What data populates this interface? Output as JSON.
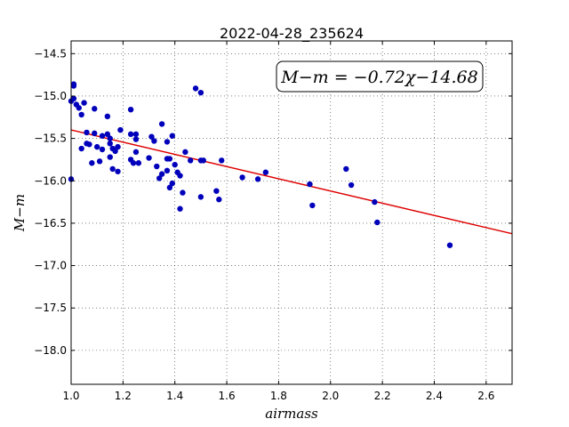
{
  "chart_data": {
    "type": "scatter",
    "title": "2022-04-28_235624",
    "xlabel": "airmass",
    "ylabel": "M−m",
    "xlim": [
      1.0,
      2.7
    ],
    "ylim": [
      -18.4,
      -14.35
    ],
    "y_inverted": true,
    "grid": true,
    "x_ticks": [
      1.0,
      1.2,
      1.4,
      1.6,
      1.8,
      2.0,
      2.2,
      2.4,
      2.6
    ],
    "x_tick_labels": [
      "1.0",
      "1.2",
      "1.4",
      "1.6",
      "1.8",
      "2.0",
      "2.2",
      "2.4",
      "2.6"
    ],
    "y_ticks": [
      -14.5,
      -15.0,
      -15.5,
      -16.0,
      -16.5,
      -17.0,
      -17.5,
      -18.0
    ],
    "y_tick_labels": [
      "−14.5",
      "−15.0",
      "−15.5",
      "−16.0",
      "−16.5",
      "−17.0",
      "−17.5",
      "−18.0"
    ],
    "annotation": "M−m = −0.72χ−14.68",
    "annotation_placement": "top-right",
    "fit_line": {
      "slope": -0.72,
      "intercept": -14.68,
      "color": "#dd0000"
    },
    "marker_color": "#0000bb",
    "series": [
      {
        "x": [
          1.0,
          1.0,
          1.01,
          1.01,
          1.01,
          1.02,
          1.03,
          1.04,
          1.04,
          1.05,
          1.06,
          1.06,
          1.07,
          1.08,
          1.09,
          1.09,
          1.1,
          1.11,
          1.12,
          1.12,
          1.14,
          1.14,
          1.15,
          1.15,
          1.15,
          1.16,
          1.16,
          1.17,
          1.18,
          1.18,
          1.19,
          1.23,
          1.23,
          1.23,
          1.24,
          1.25,
          1.25,
          1.25,
          1.26,
          1.3,
          1.31,
          1.32,
          1.33,
          1.34,
          1.35,
          1.35,
          1.37,
          1.37,
          1.37,
          1.38,
          1.38,
          1.39,
          1.39,
          1.4,
          1.41,
          1.42,
          1.42,
          1.43,
          1.44,
          1.46,
          1.48,
          1.5,
          1.5,
          1.5,
          1.51,
          1.56,
          1.57,
          1.58,
          1.66,
          1.72,
          1.75,
          1.92,
          1.93,
          2.06,
          2.08,
          2.17,
          2.18,
          2.46
        ],
        "y": [
          -15.06,
          -15.98,
          -14.86,
          -14.88,
          -15.03,
          -15.1,
          -15.14,
          -15.22,
          -15.62,
          -15.08,
          -15.43,
          -15.56,
          -15.57,
          -15.79,
          -15.15,
          -15.44,
          -15.6,
          -15.77,
          -15.47,
          -15.63,
          -15.24,
          -15.45,
          -15.5,
          -15.56,
          -15.72,
          -15.62,
          -15.86,
          -15.65,
          -15.6,
          -15.89,
          -15.4,
          -15.16,
          -15.45,
          -15.75,
          -15.79,
          -15.45,
          -15.51,
          -15.66,
          -15.79,
          -15.73,
          -15.48,
          -15.53,
          -15.83,
          -15.97,
          -15.33,
          -15.92,
          -15.54,
          -15.74,
          -15.88,
          -15.74,
          -16.08,
          -16.03,
          -15.47,
          -15.81,
          -15.9,
          -15.94,
          -16.33,
          -16.14,
          -15.66,
          -15.76,
          -14.91,
          -14.96,
          -15.76,
          -16.19,
          -15.76,
          -16.12,
          -16.22,
          -15.76,
          -15.96,
          -15.98,
          -15.9,
          -16.04,
          -16.29,
          -15.86,
          -16.05,
          -16.25,
          -16.49,
          -16.76
        ]
      }
    ]
  }
}
